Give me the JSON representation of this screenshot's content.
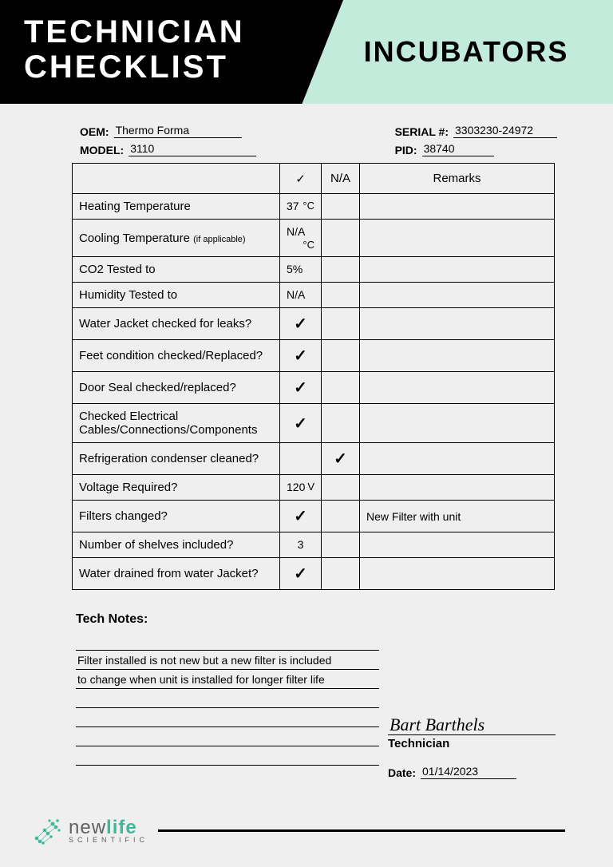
{
  "header": {
    "title_line1": "TECHNICIAN",
    "title_line2": "CHECKLIST",
    "category": "INCUBATORS"
  },
  "meta": {
    "oem_label": "OEM:",
    "oem_value": "Thermo Forma",
    "model_label": "MODEL:",
    "model_value": "3110",
    "serial_label": "SERIAL #:",
    "serial_value": "3303230-24972",
    "pid_label": "PID:",
    "pid_value": "38740"
  },
  "table": {
    "hdr_check": "✓",
    "hdr_na": "N/A",
    "hdr_remarks": "Remarks",
    "rows": [
      {
        "item": "Heating Temperature",
        "sub": "",
        "check": "37",
        "unit": "°C",
        "na": "",
        "remarks": ""
      },
      {
        "item": "Cooling Temperature ",
        "sub": "(if applicable)",
        "check": "N/A",
        "unit": "°C",
        "na": "",
        "remarks": ""
      },
      {
        "item": "CO2 Tested to",
        "sub": "",
        "check": "5%",
        "unit": "",
        "na": "",
        "remarks": ""
      },
      {
        "item": "Humidity Tested to",
        "sub": "",
        "check": "N/A",
        "unit": "",
        "na": "",
        "remarks": ""
      },
      {
        "item": "Water Jacket checked for leaks?",
        "sub": "",
        "check": "✓",
        "unit": "",
        "na": "",
        "remarks": ""
      },
      {
        "item": "Feet condition checked/Replaced?",
        "sub": "",
        "check": "✓",
        "unit": "",
        "na": "",
        "remarks": ""
      },
      {
        "item": "Door Seal checked/replaced?",
        "sub": "",
        "check": "✓",
        "unit": "",
        "na": "",
        "remarks": ""
      },
      {
        "item": "Checked Electrical Cables/Connections/Components",
        "sub": "",
        "check": "✓",
        "unit": "",
        "na": "",
        "remarks": ""
      },
      {
        "item": "Refrigeration condenser cleaned?",
        "sub": "",
        "check": "",
        "unit": "",
        "na": "✓",
        "remarks": ""
      },
      {
        "item": "Voltage Required?",
        "sub": "",
        "check": "120",
        "unit": "V",
        "na": "",
        "remarks": ""
      },
      {
        "item": "Filters changed?",
        "sub": "",
        "check": "✓",
        "unit": "",
        "na": "",
        "remarks": "New Filter with unit"
      },
      {
        "item": "Number of shelves included?",
        "sub": "",
        "check": "3",
        "unit": "",
        "na": "",
        "remarks": ""
      },
      {
        "item": "Water drained from water Jacket?",
        "sub": "",
        "check": "✓",
        "unit": "",
        "na": "",
        "remarks": ""
      }
    ]
  },
  "notes": {
    "title": "Tech Notes:",
    "lines": [
      "",
      " Filter installed is not new but a new filter is included",
      "to change when unit is installed for longer filter life",
      "",
      "",
      "",
      ""
    ]
  },
  "signature": {
    "name": "Bart Barthels",
    "role": "Technician",
    "date_label": "Date:",
    "date_value": "01/14/2023"
  },
  "logo": {
    "brand_pre": "new",
    "brand_bold": "life",
    "brand_sub": "SCIENTIFIC",
    "dot_color": "#3fb89a",
    "text_color": "#606060"
  },
  "colors": {
    "mint": "#c3ebdc",
    "black": "#000000",
    "bg": "#efefef"
  }
}
